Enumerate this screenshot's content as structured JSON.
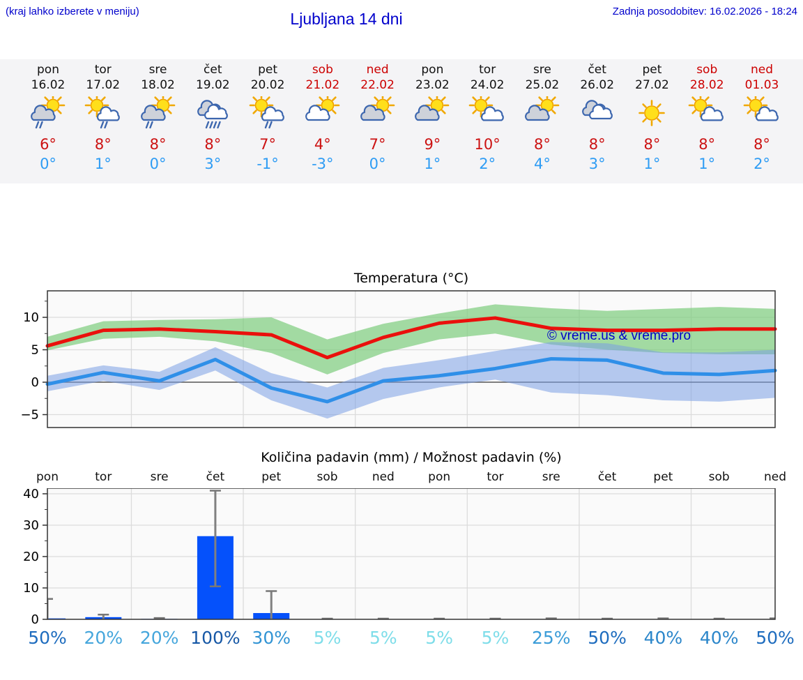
{
  "header": {
    "hint": "(kraj lahko izberete v meniju)",
    "title": "Ljubljana 14 dni",
    "updated": "Zadnja posodobitev: 16.02.2026 - 18:24"
  },
  "forecast": {
    "days": [
      {
        "name": "pon",
        "date": "16.02",
        "weekend": false,
        "high": "6°",
        "low": "0°",
        "icon": {
          "kind": "sun-cloud-rain",
          "sun": true,
          "cloud": "gray",
          "rain": 2,
          "pos": "l"
        }
      },
      {
        "name": "tor",
        "date": "17.02",
        "weekend": false,
        "high": "8°",
        "low": "1°",
        "icon": {
          "kind": "sun-cloud-rain",
          "sun": true,
          "cloud": "white",
          "rain": 2,
          "pos": "r"
        }
      },
      {
        "name": "sre",
        "date": "18.02",
        "weekend": false,
        "high": "8°",
        "low": "0°",
        "icon": {
          "kind": "sun-cloud-rain",
          "sun": true,
          "cloud": "gray",
          "rain": 2,
          "pos": "l"
        }
      },
      {
        "name": "čet",
        "date": "19.02",
        "weekend": false,
        "high": "8°",
        "low": "3°",
        "icon": {
          "kind": "heavy-rain-clouds",
          "sun": false,
          "cloud": "double",
          "rain": 4,
          "pos": "l"
        }
      },
      {
        "name": "pet",
        "date": "20.02",
        "weekend": false,
        "high": "7°",
        "low": "-1°",
        "icon": {
          "kind": "sun-cloud-rain",
          "sun": true,
          "cloud": "white",
          "rain": 2,
          "pos": "r"
        }
      },
      {
        "name": "sob",
        "date": "21.02",
        "weekend": true,
        "high": "4°",
        "low": "-3°",
        "icon": {
          "kind": "sun-cloud",
          "sun": true,
          "cloud": "white",
          "rain": 0,
          "pos": "l"
        }
      },
      {
        "name": "ned",
        "date": "22.02",
        "weekend": true,
        "high": "7°",
        "low": "0°",
        "icon": {
          "kind": "sun-cloud",
          "sun": true,
          "cloud": "gray",
          "rain": 0,
          "pos": "l"
        }
      },
      {
        "name": "pon",
        "date": "23.02",
        "weekend": false,
        "high": "9°",
        "low": "1°",
        "icon": {
          "kind": "sun-cloud",
          "sun": true,
          "cloud": "gray",
          "rain": 0,
          "pos": "l"
        }
      },
      {
        "name": "tor",
        "date": "24.02",
        "weekend": false,
        "high": "10°",
        "low": "2°",
        "icon": {
          "kind": "sun-cloud",
          "sun": true,
          "cloud": "white",
          "rain": 0,
          "pos": "r"
        }
      },
      {
        "name": "sre",
        "date": "25.02",
        "weekend": false,
        "high": "8°",
        "low": "4°",
        "icon": {
          "kind": "sun-cloud",
          "sun": true,
          "cloud": "gray",
          "rain": 0,
          "pos": "l"
        }
      },
      {
        "name": "čet",
        "date": "26.02",
        "weekend": false,
        "high": "8°",
        "low": "3°",
        "icon": {
          "kind": "cloudy",
          "sun": false,
          "cloud": "double",
          "rain": 0,
          "pos": "l"
        }
      },
      {
        "name": "pet",
        "date": "27.02",
        "weekend": false,
        "high": "8°",
        "low": "1°",
        "icon": {
          "kind": "sunny",
          "sun": true,
          "cloud": "none",
          "rain": 0,
          "pos": "l"
        }
      },
      {
        "name": "sob",
        "date": "28.02",
        "weekend": true,
        "high": "8°",
        "low": "1°",
        "icon": {
          "kind": "sun-cloud",
          "sun": true,
          "cloud": "white",
          "rain": 0,
          "pos": "r"
        }
      },
      {
        "name": "ned",
        "date": "01.03",
        "weekend": true,
        "high": "8°",
        "low": "2°",
        "icon": {
          "kind": "sun-cloud",
          "sun": true,
          "cloud": "white",
          "rain": 0,
          "pos": "r"
        }
      }
    ]
  },
  "chart_data": [
    {
      "type": "line",
      "title": "Temperatura (°C)",
      "categories": [
        "pon",
        "tor",
        "sre",
        "čet",
        "pet",
        "sob",
        "ned",
        "pon",
        "tor",
        "sre",
        "čet",
        "pet",
        "sob",
        "ned"
      ],
      "series": [
        {
          "name": "max-temp",
          "color": "#ea100c",
          "values": [
            5.6,
            8.0,
            8.2,
            7.8,
            7.3,
            3.8,
            6.9,
            9.1,
            9.9,
            8.3,
            8.0,
            8.0,
            8.2,
            8.2
          ]
        },
        {
          "name": "min-temp",
          "color": "#2f8fe8",
          "values": [
            -0.3,
            1.5,
            0.2,
            3.5,
            -0.9,
            -3.0,
            0.2,
            1.0,
            2.1,
            3.6,
            3.4,
            1.4,
            1.2,
            1.8
          ]
        }
      ],
      "bands": [
        {
          "name": "max-range",
          "color": "rgba(124,204,124,0.7)",
          "upper": [
            7.0,
            9.4,
            9.6,
            9.7,
            10.0,
            6.6,
            9.0,
            10.6,
            12.0,
            11.4,
            11.0,
            11.3,
            11.6,
            11.3
          ],
          "lower": [
            4.9,
            6.7,
            7.0,
            6.3,
            4.5,
            1.2,
            4.5,
            6.6,
            7.5,
            5.8,
            5.0,
            4.5,
            4.3,
            4.3
          ]
        },
        {
          "name": "min-range",
          "color": "rgba(122,158,228,0.55)",
          "upper": [
            1.0,
            2.6,
            1.6,
            5.4,
            1.4,
            -0.8,
            2.2,
            3.4,
            4.8,
            6.2,
            6.0,
            4.6,
            4.6,
            5.0
          ],
          "lower": [
            -1.4,
            0.2,
            -1.2,
            1.8,
            -2.8,
            -5.6,
            -2.6,
            -0.8,
            0.4,
            -1.6,
            -2.0,
            -2.8,
            -3.0,
            -2.4
          ]
        }
      ],
      "yticks": [
        {
          "v": 10,
          "label": "10"
        },
        {
          "v": 5,
          "label": "5"
        },
        {
          "v": 0,
          "label": "0"
        },
        {
          "v": -5,
          "label": "−5"
        }
      ],
      "ylim": [
        -7,
        14.1
      ],
      "grid": true,
      "watermark": "© vreme.us & vreme.pro"
    },
    {
      "type": "bar",
      "title": "Količina padavin (mm) / Možnost padavin (%)",
      "categories": [
        "pon",
        "tor",
        "sre",
        "čet",
        "pet",
        "sob",
        "ned",
        "pon",
        "tor",
        "sre",
        "čet",
        "pet",
        "sob",
        "ned"
      ],
      "values_mm": [
        0.3,
        0.7,
        0.15,
        26.5,
        2.0,
        0.05,
        0.05,
        0.05,
        0.05,
        0.1,
        0.05,
        0.1,
        0.05,
        0.1
      ],
      "error_low": [
        0,
        0,
        0,
        10.5,
        0,
        0,
        0,
        0,
        0,
        0,
        0,
        0,
        0,
        0
      ],
      "error_high": [
        6.5,
        1.5,
        0.4,
        41,
        9,
        0.2,
        0.2,
        0.2,
        0.2,
        0.3,
        0.2,
        0.3,
        0.2,
        0.3
      ],
      "bar_color": "#0551fb",
      "error_color": "#808080",
      "yticks": [
        {
          "v": 0,
          "label": "0"
        },
        {
          "v": 10,
          "label": "10"
        },
        {
          "v": 20,
          "label": "20"
        },
        {
          "v": 30,
          "label": "30"
        },
        {
          "v": 40,
          "label": "40"
        }
      ],
      "ylim": [
        0,
        41.8
      ],
      "grid": true,
      "probability_pct": [
        "50%",
        "20%",
        "20%",
        "100%",
        "30%",
        "5%",
        "5%",
        "5%",
        "5%",
        "25%",
        "50%",
        "40%",
        "40%",
        "50%"
      ],
      "probability_colors": [
        "#1e6cbe",
        "#45a6dc",
        "#45a6dc",
        "#1758a6",
        "#3294d4",
        "#7edde9",
        "#7edde9",
        "#7edde9",
        "#7edde9",
        "#3b9cd8",
        "#1e6cbe",
        "#2b86ca",
        "#2b86ca",
        "#1e6cbe"
      ]
    }
  ],
  "colors": {
    "header_blue": "#0000cc",
    "weekend_red": "#cc0000",
    "high_red": "#cc1212",
    "low_blue": "#2e9cf4",
    "strip_bg": "#f4f4f6",
    "plot_bg": "#fafafa",
    "frame": "#333333",
    "gridline": "#dcdcdc",
    "zero_line": "#555555"
  },
  "icon_names": [
    "sun-icon",
    "cloud-icon",
    "rain-icon"
  ]
}
